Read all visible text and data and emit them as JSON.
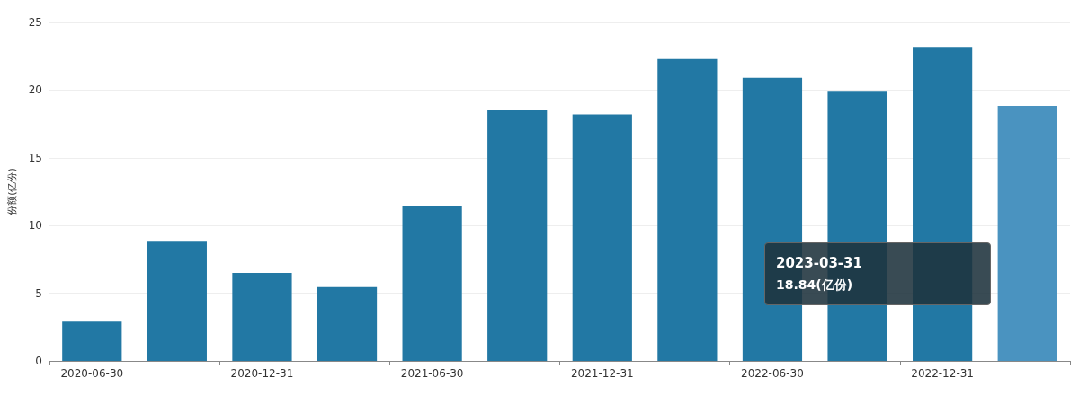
{
  "chart_data": {
    "type": "bar",
    "ylabel": "份额(亿份)",
    "categories": [
      "2020-06-30",
      null,
      "2020-12-31",
      null,
      "2021-06-30",
      null,
      "2021-12-31",
      null,
      "2022-06-30",
      null,
      "2022-12-31",
      null
    ],
    "values": [
      2.9,
      8.8,
      6.5,
      5.45,
      11.4,
      18.55,
      18.2,
      22.3,
      20.9,
      19.95,
      23.2,
      18.84
    ],
    "colors": [
      "#2278a4",
      "#2278a4",
      "#2278a4",
      "#2278a4",
      "#2278a4",
      "#2278a4",
      "#2278a4",
      "#2278a4",
      "#2278a4",
      "#2278a4",
      "#2278a4",
      "#4a93c0"
    ],
    "ylim": [
      0,
      25
    ],
    "yticks": [
      0,
      5,
      10,
      15,
      20,
      25
    ],
    "grid": "y",
    "annotations": [
      "2023-03-31",
      "18.84(亿份)"
    ]
  }
}
